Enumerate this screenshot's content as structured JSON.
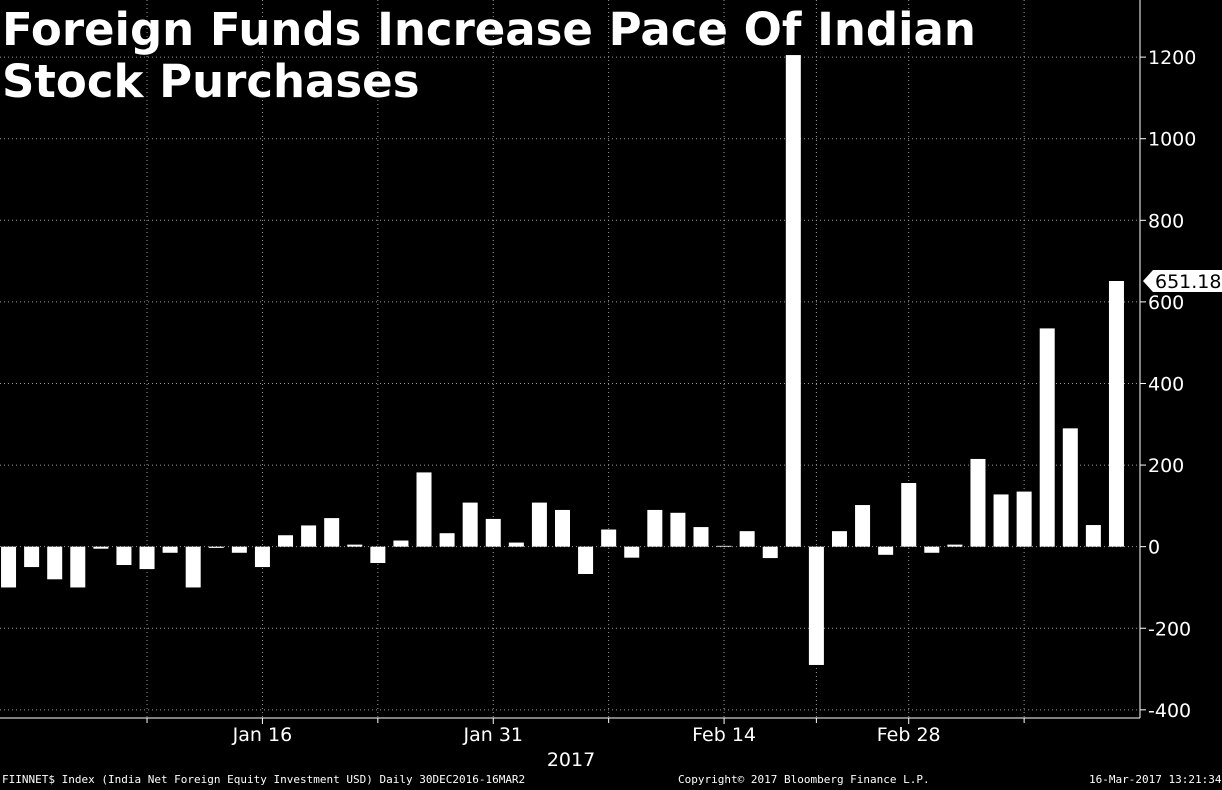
{
  "chart_data": {
    "type": "bar",
    "title_lines": [
      "Foreign Funds Increase Pace Of Indian",
      "Stock Purchases"
    ],
    "values": [
      -100,
      -50,
      -80,
      -100,
      -5,
      -45,
      -55,
      -15,
      -100,
      -3,
      -15,
      -50,
      28,
      52,
      70,
      5,
      -40,
      15,
      182,
      33,
      108,
      68,
      10,
      108,
      90,
      -67,
      42,
      -27,
      90,
      83,
      48,
      2,
      38,
      -28,
      1205,
      -290,
      38,
      102,
      -20,
      156,
      -15,
      5,
      215,
      128,
      135,
      535,
      290,
      53,
      651.18
    ],
    "ylim": [
      -420,
      1340
    ],
    "yticks": [
      -400,
      -200,
      0,
      200,
      400,
      600,
      800,
      1000,
      1200
    ],
    "ytick_labels": [
      "-400",
      "-200",
      "0",
      "200",
      "400",
      "600",
      "800",
      "1000",
      "1200"
    ],
    "xtick_labels": [
      {
        "label": "Jan 16",
        "index": 11
      },
      {
        "label": "Jan 31",
        "index": 21
      },
      {
        "label": "Feb 14",
        "index": 31
      },
      {
        "label": "Feb 28",
        "index": 39
      }
    ],
    "minor_tick_indices": [
      6,
      16,
      26,
      35,
      44
    ],
    "year_label": "2017",
    "last_value_label": "651.18",
    "bar_color": "#ffffff",
    "background": "#000000",
    "grid": true
  },
  "footer": {
    "index_info": "FIINNET$ Index (India Net Foreign Equity Investment USD)  Daily 30DEC2016-16MAR2",
    "copyright": "Copyright© 2017 Bloomberg Finance L.P.",
    "timestamp": "16-Mar-2017  13:21:34"
  }
}
